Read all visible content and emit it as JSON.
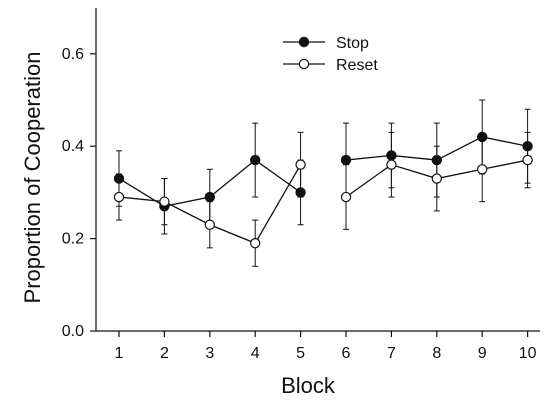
{
  "chart_data": {
    "type": "line",
    "xlabel": "Block",
    "ylabel": "Proportion of Cooperation",
    "x": [
      1,
      2,
      3,
      4,
      5,
      6,
      7,
      8,
      9,
      10
    ],
    "xlim": [
      0.3,
      10.3
    ],
    "ylim": [
      0.0,
      0.7
    ],
    "yticks": [
      0.0,
      0.2,
      0.4,
      0.6
    ],
    "ytick_labels": [
      "0.0",
      "0.2",
      "0.4",
      "0.6"
    ],
    "xticks": [
      1,
      2,
      3,
      4,
      5,
      6,
      7,
      8,
      9,
      10
    ],
    "xtick_labels": [
      "1",
      "2",
      "3",
      "4",
      "5",
      "6",
      "7",
      "8",
      "9",
      "10"
    ],
    "grid": false,
    "legend_position": "top-center",
    "break_after_x": 5,
    "series": [
      {
        "name": "Stop",
        "marker": "filled-circle",
        "values": [
          0.33,
          0.27,
          0.29,
          0.37,
          0.3,
          0.37,
          0.38,
          0.37,
          0.42,
          0.4
        ],
        "error": [
          0.06,
          0.06,
          0.06,
          0.08,
          0.07,
          0.08,
          0.07,
          0.08,
          0.08,
          0.08
        ]
      },
      {
        "name": "Reset",
        "marker": "open-circle",
        "values": [
          0.29,
          0.28,
          0.23,
          0.19,
          0.36,
          0.29,
          0.36,
          0.33,
          0.35,
          0.37
        ],
        "error": [
          0.05,
          0.05,
          0.05,
          0.05,
          0.07,
          0.07,
          0.07,
          0.07,
          0.07,
          0.06
        ]
      }
    ]
  },
  "colors": {
    "line": "#111111",
    "marker_fill_stop": "#111111",
    "marker_fill_reset": "#ffffff"
  }
}
